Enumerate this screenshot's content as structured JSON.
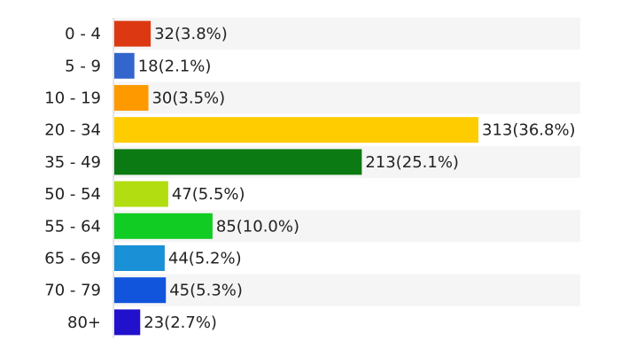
{
  "chart_data": {
    "type": "bar",
    "orientation": "horizontal",
    "categories": [
      "0 - 4",
      "5 - 9",
      "10 - 19",
      "20 - 34",
      "35 - 49",
      "50 - 54",
      "55 - 64",
      "65 - 69",
      "70 - 79",
      "80+"
    ],
    "values": [
      32,
      18,
      30,
      313,
      213,
      47,
      85,
      44,
      45,
      23
    ],
    "value_labels": [
      "32(3.8%)",
      "18(2.1%)",
      "30(3.5%)",
      "313(36.8%)",
      "213(25.1%)",
      "47(5.5%)",
      "85(10.0%)",
      "44(5.2%)",
      "45(5.3%)",
      "23(2.7%)"
    ],
    "colors": [
      "#dc3912",
      "#3366cc",
      "#ff9900",
      "#ffcc00",
      "#0b7a12",
      "#b2dd11",
      "#11cc22",
      "#1a91d6",
      "#1155dd",
      "#2211cc"
    ],
    "xlim": [
      0,
      313
    ],
    "grid": false,
    "legend": "none"
  }
}
